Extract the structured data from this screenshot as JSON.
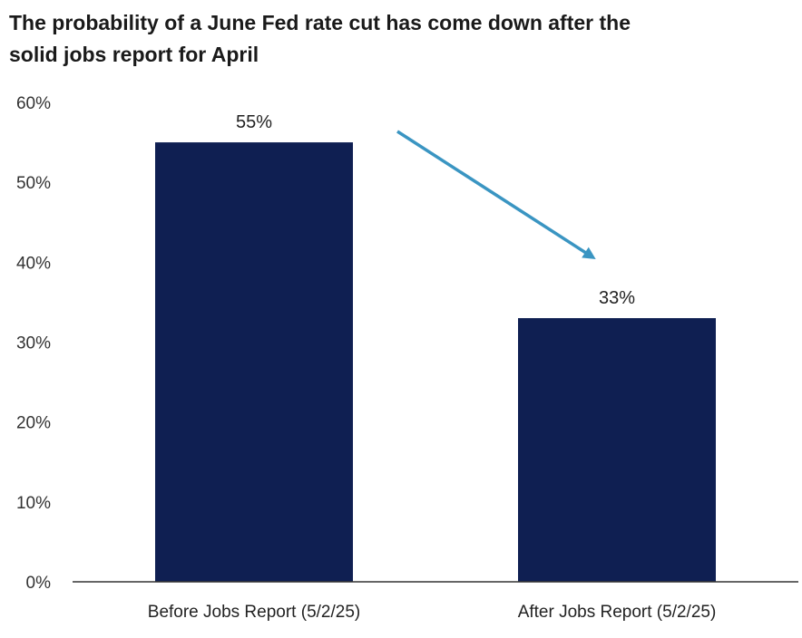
{
  "title_lines": [
    "The probability of a June Fed rate cut has come down after the",
    "solid jobs report for April"
  ],
  "colors": {
    "bar": "#0f1f52",
    "arrow": "#3a95c2",
    "axis": "#333333"
  },
  "chart_data": {
    "type": "bar",
    "title": "The probability of a June Fed rate cut has come down after the solid jobs report for April",
    "categories": [
      "Before Jobs Report (5/2/25)",
      "After Jobs Report (5/2/25)"
    ],
    "values": [
      55,
      33
    ],
    "data_labels": [
      "55%",
      "33%"
    ],
    "ylim": [
      0,
      60
    ],
    "yticks": [
      0,
      10,
      20,
      30,
      40,
      50,
      60
    ],
    "ytick_labels": [
      "0%",
      "10%",
      "20%",
      "30%",
      "40%",
      "50%",
      "60%"
    ],
    "grid": false,
    "legend": "none",
    "annotation": "arrow-down"
  }
}
